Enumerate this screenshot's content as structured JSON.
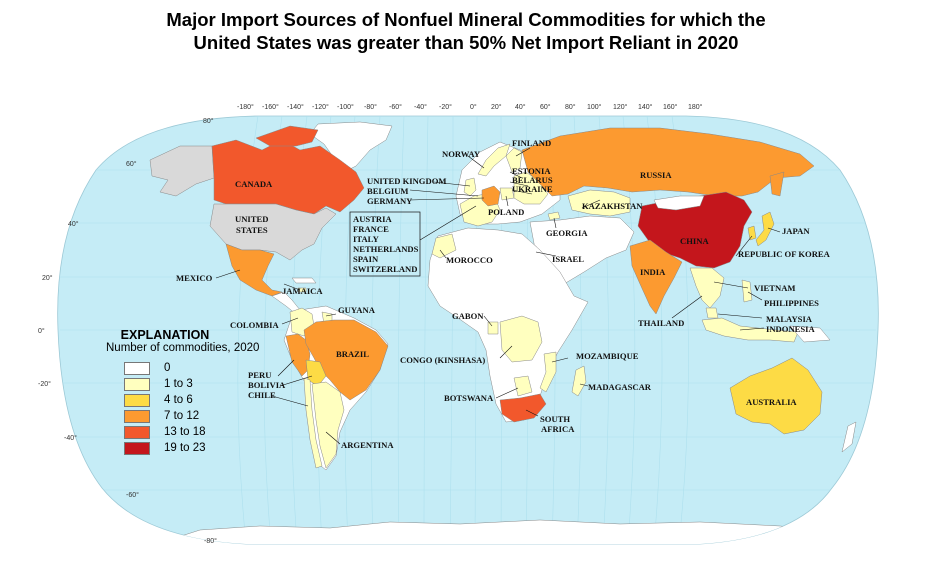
{
  "title_line1": "Major Import Sources of Nonfuel Mineral Commodities for which the",
  "title_line2": "United States was greater than 50% Net Import Reliant in 2020",
  "colors": {
    "ocean": "#c5ecf6",
    "land_other": "#ffffff",
    "usa": "#d9d9d9",
    "c0": "#ffffff",
    "c1": "#ffffbf",
    "c2": "#fddb45",
    "c3": "#fc9a30",
    "c4": "#f2582c",
    "c5": "#c4161c"
  },
  "legend": {
    "title": "EXPLANATION",
    "subtitle": "Number of commodities, 2020",
    "classes": [
      {
        "label": "0",
        "color": "#ffffff"
      },
      {
        "label": "1 to 3",
        "color": "#ffffbf"
      },
      {
        "label": "4 to 6",
        "color": "#fddb45"
      },
      {
        "label": "7 to 12",
        "color": "#fc9a30"
      },
      {
        "label": "13 to 18",
        "color": "#f2582c"
      },
      {
        "label": "19 to 23",
        "color": "#c4161c"
      }
    ]
  },
  "longitude_ticks": [
    "-180°",
    "-160°",
    "-140°",
    "-120°",
    "-100°",
    "-80°",
    "-60°",
    "-40°",
    "-20°",
    "0°",
    "20°",
    "40°",
    "60°",
    "80°",
    "100°",
    "120°",
    "140°",
    "160°",
    "180°"
  ],
  "latitude_ticks": [
    "80°",
    "60°",
    "40°",
    "20°",
    "0°",
    "-20°",
    "-40°",
    "-60°",
    "-80°"
  ],
  "countries": [
    {
      "name": "CANADA",
      "class": "13 to 18"
    },
    {
      "name": "UNITED STATES",
      "class": "not applicable"
    },
    {
      "name": "MEXICO",
      "class": "7 to 12"
    },
    {
      "name": "JAMAICA",
      "class": "1 to 3"
    },
    {
      "name": "COLOMBIA",
      "class": "1 to 3"
    },
    {
      "name": "GUYANA",
      "class": "1 to 3"
    },
    {
      "name": "BRAZIL",
      "class": "7 to 12"
    },
    {
      "name": "PERU",
      "class": "7 to 12"
    },
    {
      "name": "BOLIVIA",
      "class": "4 to 6"
    },
    {
      "name": "CHILE",
      "class": "1 to 3"
    },
    {
      "name": "ARGENTINA",
      "class": "1 to 3"
    },
    {
      "name": "NORWAY",
      "class": "1 to 3"
    },
    {
      "name": "FINLAND",
      "class": "1 to 3"
    },
    {
      "name": "ESTONIA",
      "class": "1 to 3"
    },
    {
      "name": "BELARUS",
      "class": "1 to 3"
    },
    {
      "name": "UKRAINE",
      "class": "1 to 3"
    },
    {
      "name": "UNITED KINGDOM",
      "class": "1 to 3"
    },
    {
      "name": "BELGIUM",
      "class": "1 to 3"
    },
    {
      "name": "GERMANY",
      "class": "7 to 12"
    },
    {
      "name": "POLAND",
      "class": "1 to 3"
    },
    {
      "name": "AUSTRIA",
      "class": "1 to 3"
    },
    {
      "name": "FRANCE",
      "class": "1 to 3"
    },
    {
      "name": "ITALY",
      "class": "1 to 3"
    },
    {
      "name": "NETHERLANDS",
      "class": "1 to 3"
    },
    {
      "name": "SPAIN",
      "class": "1 to 3"
    },
    {
      "name": "SWITZERLAND",
      "class": "1 to 3"
    },
    {
      "name": "RUSSIA",
      "class": "7 to 12"
    },
    {
      "name": "KAZAKHSTAN",
      "class": "1 to 3"
    },
    {
      "name": "GEORGIA",
      "class": "1 to 3"
    },
    {
      "name": "ISRAEL",
      "class": "1 to 3"
    },
    {
      "name": "MOROCCO",
      "class": "1 to 3"
    },
    {
      "name": "CHINA",
      "class": "19 to 23"
    },
    {
      "name": "JAPAN",
      "class": "4 to 6"
    },
    {
      "name": "REPUBLIC OF KOREA",
      "class": "4 to 6"
    },
    {
      "name": "INDIA",
      "class": "7 to 12"
    },
    {
      "name": "VIETNAM",
      "class": "1 to 3"
    },
    {
      "name": "PHILIPPINES",
      "class": "1 to 3"
    },
    {
      "name": "THAILAND",
      "class": "1 to 3"
    },
    {
      "name": "MALAYSIA",
      "class": "1 to 3"
    },
    {
      "name": "INDONESIA",
      "class": "1 to 3"
    },
    {
      "name": "GABON",
      "class": "1 to 3"
    },
    {
      "name": "CONGO (KINSHASA)",
      "class": "1 to 3"
    },
    {
      "name": "MOZAMBIQUE",
      "class": "1 to 3"
    },
    {
      "name": "MADAGASCAR",
      "class": "1 to 3"
    },
    {
      "name": "BOTSWANA",
      "class": "1 to 3"
    },
    {
      "name": "SOUTH AFRICA",
      "class": "13 to 18"
    },
    {
      "name": "AUSTRALIA",
      "class": "4 to 6"
    }
  ]
}
